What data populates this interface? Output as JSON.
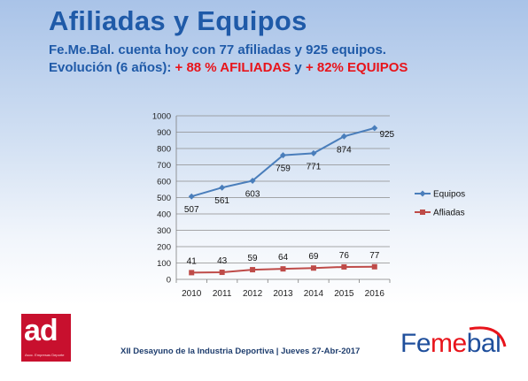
{
  "title": "Afiliadas y Equipos",
  "subtitle1": "Fe.Me.Bal. cuenta hoy con 77 afiliadas y 925 equipos.",
  "subtitle2_prefix": "Evolución  (6 años): ",
  "subtitle2_red1": "+ 88 % AFILIADAS",
  "subtitle2_mid": " y ",
  "subtitle2_red2": "+ 82% EQUIPOS",
  "footer": "XII Desayuno de la Industria Deportiva | Jueves 27-Abr-2017",
  "logo_left": {
    "text": "ad",
    "tagline": "Asoc. Empresas Deporte",
    "color": "#c8102e"
  },
  "logo_right": {
    "part1": "Fe",
    "part2": "me",
    "part3": "bal"
  },
  "colors": {
    "title": "#1f5aa8",
    "highlight": "#e8141b",
    "equipos": "#4a7ebb",
    "afiliadas": "#be4b48"
  },
  "chart_data": {
    "type": "line",
    "categories": [
      "2010",
      "2011",
      "2012",
      "2013",
      "2014",
      "2015",
      "2016"
    ],
    "series": [
      {
        "name": "Equipos",
        "values": [
          507,
          561,
          603,
          759,
          771,
          874,
          925
        ],
        "color": "#4a7ebb",
        "marker": "diamond"
      },
      {
        "name": "Afliadas",
        "values": [
          41,
          43,
          59,
          64,
          69,
          76,
          77
        ],
        "color": "#be4b48",
        "marker": "square"
      }
    ],
    "ylim": [
      0,
      1000
    ],
    "yticks": [
      "0",
      "100",
      "200",
      "300",
      "400",
      "500",
      "600",
      "700",
      "800",
      "900",
      "1000"
    ],
    "grid": true,
    "legend": "right"
  }
}
